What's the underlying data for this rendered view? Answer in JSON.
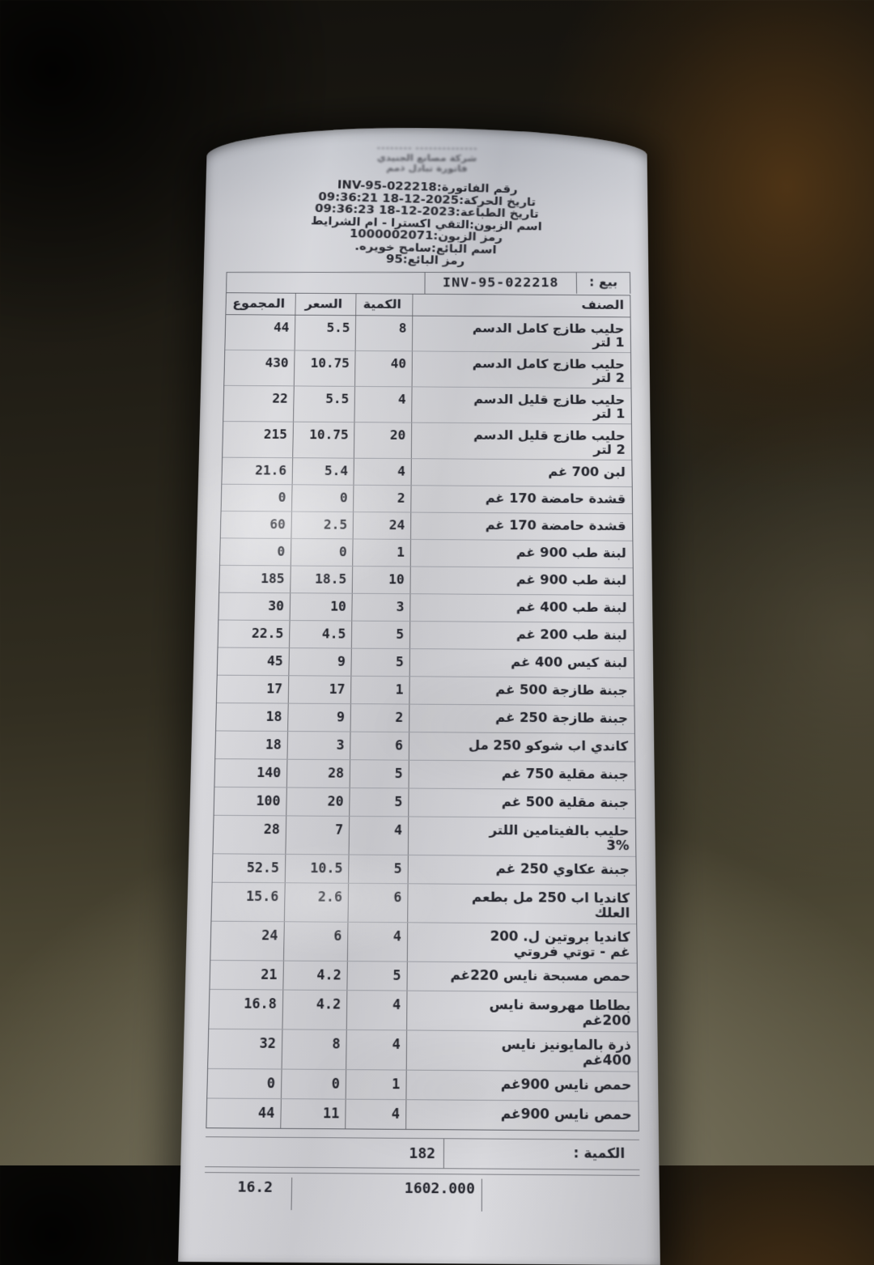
{
  "receipt": {
    "store_header": [
      "٭٭٭٭٭٭٭٭٭٭٭٭٭٭ ٭٭٭٭٭٭٭٭",
      "شركة مصانع الجنيدي",
      "فاتورة تبادل ذمم"
    ],
    "info_lines": [
      "رقم الفاتورة:INV-95-022218",
      "تاريخ الحركة:2025-12-18 09:36:21",
      "تاريخ الطباعة:2023-12-18 09:36:23",
      "اسم الزبون:التقي اكسترا - ام الشرايط",
      "رمز الزبون:1000002071",
      "اسم البائع:سامح خويره.",
      "رمز البائع:95"
    ],
    "sale_label": "بيع :",
    "sale_invoice": "INV-95-022218",
    "table": {
      "headers": {
        "item": "الصنف",
        "qty": "الكمية",
        "price": "السعر",
        "total": "المجموع"
      },
      "rows": [
        {
          "name": "حليب طازج كامل الدسم",
          "name2": "1 لتر",
          "qty": "8",
          "price": "5.5",
          "total": "44"
        },
        {
          "name": "حليب طازج كامل الدسم",
          "name2": "2 لتر",
          "qty": "40",
          "price": "10.75",
          "total": "430"
        },
        {
          "name": "حليب طازج قليل الدسم",
          "name2": "1 لتر",
          "qty": "4",
          "price": "5.5",
          "total": "22"
        },
        {
          "name": "حليب طازج قليل الدسم",
          "name2": "2 لتر",
          "qty": "20",
          "price": "10.75",
          "total": "215"
        },
        {
          "name": "لبن 700 غم",
          "qty": "4",
          "price": "5.4",
          "total": "21.6"
        },
        {
          "name": "قشدة حامضة 170 غم",
          "qty": "2",
          "price": "0",
          "total": "0"
        },
        {
          "name": "قشدة حامضة 170 غم",
          "qty": "24",
          "price": "2.5",
          "total": "60"
        },
        {
          "name": "لبنة طب 900 غم",
          "qty": "1",
          "price": "0",
          "total": "0"
        },
        {
          "name": "لبنة طب 900 غم",
          "qty": "10",
          "price": "18.5",
          "total": "185"
        },
        {
          "name": "لبنة طب 400 غم",
          "qty": "3",
          "price": "10",
          "total": "30"
        },
        {
          "name": "لبنة طب 200 غم",
          "qty": "5",
          "price": "4.5",
          "total": "22.5"
        },
        {
          "name": "لبنة كيس 400 غم",
          "qty": "5",
          "price": "9",
          "total": "45"
        },
        {
          "name": "جبنة طازجة 500 غم",
          "qty": "1",
          "price": "17",
          "total": "17"
        },
        {
          "name": "جبنة طازجة 250 غم",
          "qty": "2",
          "price": "9",
          "total": "18"
        },
        {
          "name": "كاندي اب شوكو 250 مل",
          "qty": "6",
          "price": "3",
          "total": "18"
        },
        {
          "name": "جبنة مقلية 750 غم",
          "qty": "5",
          "price": "28",
          "total": "140"
        },
        {
          "name": "جبنة مقلية 500 غم",
          "qty": "5",
          "price": "20",
          "total": "100"
        },
        {
          "name": "حليب بالفيتامين اللتر",
          "name2": "3%",
          "qty": "4",
          "price": "7",
          "total": "28"
        },
        {
          "name": "جبنة عكاوي 250 غم",
          "qty": "5",
          "price": "10.5",
          "total": "52.5"
        },
        {
          "name": "كانديا اب 250 مل بطعم",
          "name2": "العلك",
          "qty": "6",
          "price": "2.6",
          "total": "15.6"
        },
        {
          "name": "كانديا بروتين ل. 200",
          "name2": "غم - توتي فروتي",
          "qty": "4",
          "price": "6",
          "total": "24"
        },
        {
          "name": "حمص مسبحة نايس 220غم",
          "qty": "5",
          "price": "4.2",
          "total": "21"
        },
        {
          "name": "بطاطا مهروسة نايس",
          "name2": "200غم",
          "qty": "4",
          "price": "4.2",
          "total": "16.8"
        },
        {
          "name": "ذرة بالمايونيز نايس",
          "name2": "400غم",
          "qty": "4",
          "price": "8",
          "total": "32"
        },
        {
          "name": "حمص نايس 900غم",
          "qty": "1",
          "price": "0",
          "total": "0"
        },
        {
          "name": "حمص نايس 900غم",
          "qty": "4",
          "price": "11",
          "total": "44"
        }
      ]
    },
    "summary": {
      "qty_label": "الكمية :",
      "qty_value": "182",
      "partial_total": "1602.000",
      "partial_left": "16.2"
    }
  },
  "colors": {
    "paper": "#d3d3d8",
    "ink": "#24252d",
    "table_border": "#5f6168",
    "row_line": "#9b9da4",
    "metal_dark": "#14120e",
    "metal_light": "#8d8873",
    "metal_brown": "#563816"
  }
}
